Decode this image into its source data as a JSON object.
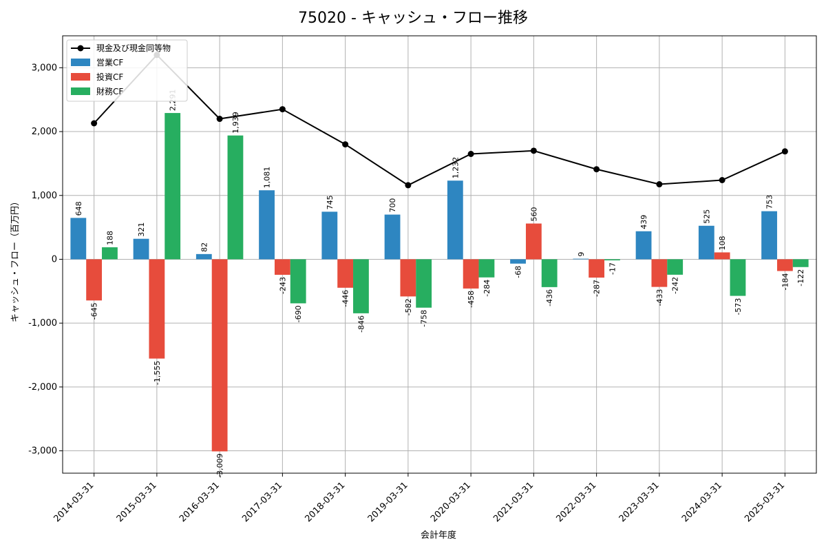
{
  "chart_data": {
    "type": "bar",
    "title": "75020 - キャッシュ・フロー推移",
    "xlabel": "会計年度",
    "ylabel": "キャッシュ・フロー（百万円）",
    "categories": [
      "2014-03-31",
      "2015-03-31",
      "2016-03-31",
      "2017-03-31",
      "2018-03-31",
      "2019-03-31",
      "2020-03-31",
      "2021-03-31",
      "2022-03-31",
      "2023-03-31",
      "2024-03-31",
      "2025-03-31"
    ],
    "ylim": [
      -3350,
      3500
    ],
    "yticks": [
      -3000,
      -2000,
      -1000,
      0,
      1000,
      2000,
      3000
    ],
    "ytick_labels": [
      "-3,000",
      "-2,000",
      "-1,000",
      "0",
      "1,000",
      "2,000",
      "3,000"
    ],
    "grid": true,
    "legend_position": "top-left",
    "series": [
      {
        "name": "営業CF",
        "color": "#2e86c1",
        "values": [
          648,
          321,
          82,
          1081,
          745,
          700,
          1232,
          -68,
          9,
          439,
          525,
          753
        ],
        "labels": [
          "648",
          "321",
          "82",
          "1,081",
          "745",
          "700",
          "1,232",
          "-68",
          "9",
          "439",
          "525",
          "753"
        ]
      },
      {
        "name": "投資CF",
        "color": "#e74c3c",
        "values": [
          -645,
          -1555,
          -3009,
          -243,
          -446,
          -582,
          -458,
          560,
          -287,
          -433,
          108,
          -184
        ],
        "labels": [
          "-645",
          "-1,555",
          "-3,009",
          "-243",
          "-446",
          "-582",
          "-458",
          "560",
          "-287",
          "-433",
          "108",
          "-184"
        ]
      },
      {
        "name": "財務CF",
        "color": "#27ae60",
        "values": [
          188,
          2291,
          1939,
          -690,
          -846,
          -758,
          -284,
          -436,
          -17,
          -242,
          -573,
          -122
        ],
        "labels": [
          "188",
          "2,291",
          "1,939",
          "-690",
          "-846",
          "-758",
          "-284",
          "-436",
          "-17",
          "-242",
          "-573",
          "-122"
        ]
      }
    ],
    "line_series": {
      "name": "現金及び現金同等物",
      "color": "#000000",
      "values": [
        2130,
        3200,
        2200,
        2350,
        1800,
        1160,
        1650,
        1700,
        1410,
        1175,
        1240,
        1690
      ]
    }
  }
}
